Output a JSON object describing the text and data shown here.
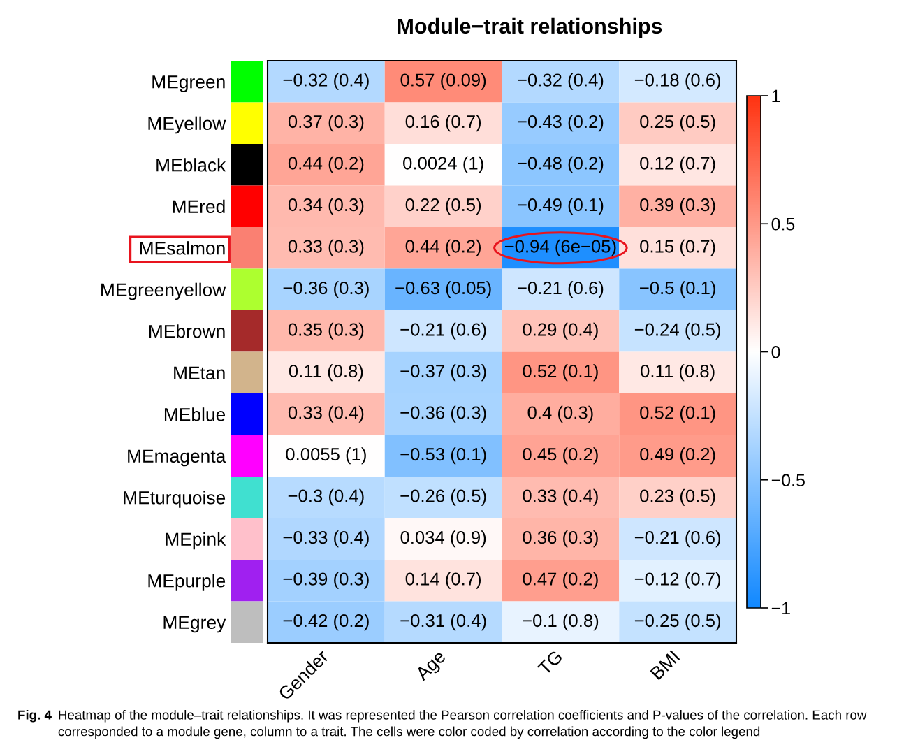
{
  "chart_data": {
    "type": "heatmap",
    "title": "Module−trait relationships",
    "categories": [
      "Gender",
      "Age",
      "TG",
      "BMI"
    ],
    "y_categories": [
      "MEgreen",
      "MEyellow",
      "MEblack",
      "MEred",
      "MEsalmon",
      "MEgreenyellow",
      "MEbrown",
      "MEtan",
      "MEblue",
      "MEmagenta",
      "MEturquoise",
      "MEpink",
      "MEpurple",
      "MEgrey"
    ],
    "cells": [
      [
        -0.32,
        0.57,
        -0.32,
        -0.18
      ],
      [
        0.37,
        0.16,
        -0.43,
        0.25
      ],
      [
        0.44,
        0.0024,
        -0.48,
        0.12
      ],
      [
        0.34,
        0.22,
        -0.49,
        0.39
      ],
      [
        0.33,
        0.44,
        -0.94,
        0.15
      ],
      [
        -0.36,
        -0.63,
        -0.21,
        -0.5
      ],
      [
        0.35,
        -0.21,
        0.29,
        -0.24
      ],
      [
        0.11,
        -0.37,
        0.52,
        0.11
      ],
      [
        0.33,
        -0.36,
        0.4,
        0.52
      ],
      [
        0.0055,
        -0.53,
        0.45,
        0.49
      ],
      [
        -0.3,
        -0.26,
        0.33,
        0.23
      ],
      [
        -0.33,
        0.034,
        0.36,
        -0.21
      ],
      [
        -0.39,
        0.14,
        0.47,
        -0.12
      ],
      [
        -0.42,
        -0.31,
        -0.1,
        -0.25
      ]
    ],
    "cell_labels": [
      [
        "−0.32 (0.4)",
        "0.57 (0.09)",
        "−0.32 (0.4)",
        "−0.18 (0.6)"
      ],
      [
        "0.37 (0.3)",
        "0.16 (0.7)",
        "−0.43 (0.2)",
        "0.25 (0.5)"
      ],
      [
        "0.44 (0.2)",
        "0.0024 (1)",
        "−0.48 (0.2)",
        "0.12 (0.7)"
      ],
      [
        "0.34 (0.3)",
        "0.22 (0.5)",
        "−0.49 (0.1)",
        "0.39 (0.3)"
      ],
      [
        "0.33 (0.3)",
        "0.44 (0.2)",
        "−0.94 (6e−05)",
        "0.15 (0.7)"
      ],
      [
        "−0.36 (0.3)",
        "−0.63 (0.05)",
        "−0.21 (0.6)",
        "−0.5 (0.1)"
      ],
      [
        "0.35 (0.3)",
        "−0.21 (0.6)",
        "0.29 (0.4)",
        "−0.24 (0.5)"
      ],
      [
        "0.11 (0.8)",
        "−0.37 (0.3)",
        "0.52 (0.1)",
        "0.11 (0.8)"
      ],
      [
        "0.33 (0.4)",
        "−0.36 (0.3)",
        "0.4 (0.3)",
        "0.52 (0.1)"
      ],
      [
        "0.0055 (1)",
        "−0.53 (0.1)",
        "0.45 (0.2)",
        "0.49 (0.2)"
      ],
      [
        "−0.3 (0.4)",
        "−0.26 (0.5)",
        "0.33 (0.4)",
        "0.23 (0.5)"
      ],
      [
        "−0.33 (0.4)",
        "0.034 (0.9)",
        "0.36 (0.3)",
        "−0.21 (0.6)"
      ],
      [
        "−0.39 (0.3)",
        "0.14 (0.7)",
        "0.47 (0.2)",
        "−0.12 (0.7)"
      ],
      [
        "−0.42 (0.2)",
        "−0.31 (0.4)",
        "−0.1 (0.8)",
        "−0.25 (0.5)"
      ]
    ],
    "clim": [
      -1,
      1
    ],
    "cticks": [
      {
        "value": -1,
        "label": "−1"
      },
      {
        "value": -0.5,
        "label": "−0.5"
      },
      0,
      0.5,
      1
    ],
    "annotations": [
      "Fig. 4",
      "Heatmap of the module–trait relationships. It was represented the Pearson correlation coefficients and P-values of the correlation. Each row corresponded to a module gene, column to a trait. The cells were color coded by correlation according to the color legend"
    ]
  }
}
